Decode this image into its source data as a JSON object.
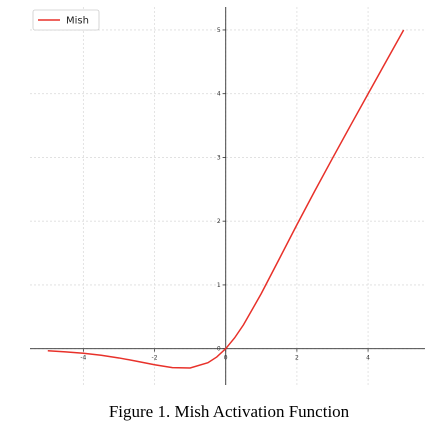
{
  "chart_data": {
    "type": "line",
    "caption": "Figure 1.  Mish Activation Function",
    "x": [
      -5,
      -4.5,
      -4,
      -3.5,
      -3,
      -2.5,
      -2,
      -1.5,
      -1,
      -0.5,
      -0.25,
      0,
      0.25,
      0.5,
      1,
      1.5,
      2,
      2.5,
      3,
      3.5,
      4,
      4.5,
      5
    ],
    "series": [
      {
        "name": "Mish",
        "color": "#e8312a",
        "values": [
          -0.0336,
          -0.0497,
          -0.0726,
          -0.1041,
          -0.1456,
          -0.1968,
          -0.2525,
          -0.2981,
          -0.3034,
          -0.2207,
          -0.1299,
          0,
          0.1695,
          0.3752,
          0.8651,
          1.403,
          1.9439,
          2.4714,
          2.9864,
          3.494,
          3.9974,
          4.4991,
          4.9996
        ]
      }
    ],
    "xlim": [
      -5.5,
      5.6
    ],
    "ylim": [
      -0.57,
      5.36
    ],
    "xticks": [
      -4,
      -2,
      0,
      2,
      4
    ],
    "yticks": [
      0,
      1,
      2,
      3,
      4,
      5
    ],
    "grid": true,
    "legend": "upper-left"
  }
}
